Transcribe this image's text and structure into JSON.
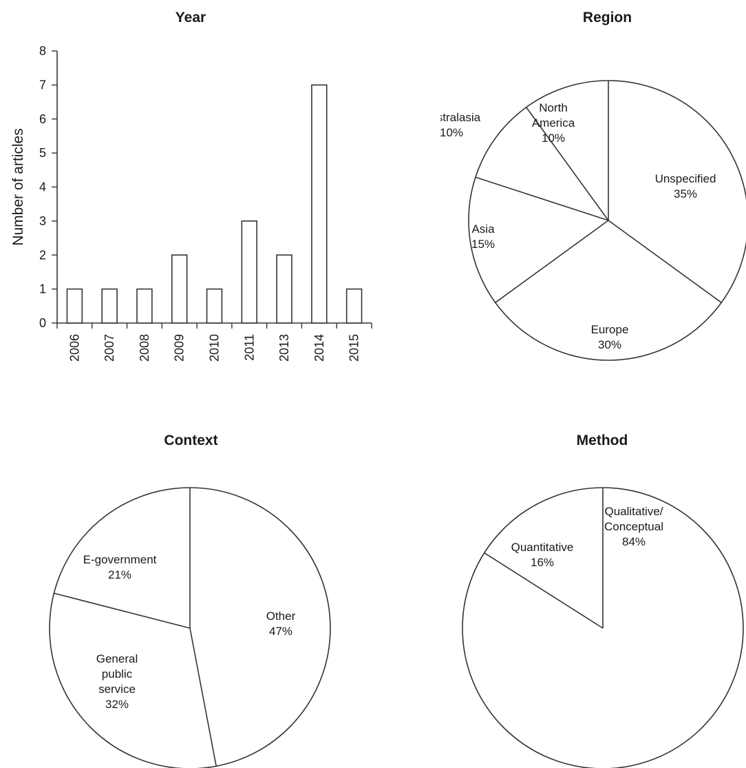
{
  "chart_data": [
    {
      "type": "bar",
      "title": "Year",
      "ylabel": "Number of articles",
      "xlabel": "",
      "categories": [
        "2006",
        "2007",
        "2008",
        "2009",
        "2010",
        "2011",
        "2013",
        "2014",
        "2015"
      ],
      "values": [
        1,
        1,
        1,
        2,
        1,
        3,
        2,
        7,
        1
      ],
      "ylim": [
        0,
        8
      ],
      "yticks": [
        "0",
        "1",
        "2",
        "3",
        "4",
        "5",
        "6",
        "7",
        "8"
      ],
      "grid": false
    },
    {
      "type": "pie",
      "title": "Region",
      "slices": [
        {
          "label": [
            "Unspecified",
            "35%"
          ],
          "value": 35
        },
        {
          "label": [
            "Europe",
            "30%"
          ],
          "value": 30
        },
        {
          "label": [
            "Asia",
            "15%"
          ],
          "value": 15
        },
        {
          "label": [
            "Australasia",
            "10%"
          ],
          "value": 10
        },
        {
          "label": [
            "North",
            "America",
            "10%"
          ],
          "value": 10
        }
      ]
    },
    {
      "type": "pie",
      "title": "Context",
      "slices": [
        {
          "label": [
            "Other",
            "47%"
          ],
          "value": 47
        },
        {
          "label": [
            "General",
            "public",
            "service",
            "32%"
          ],
          "value": 32
        },
        {
          "label": [
            "E-government",
            "21%"
          ],
          "value": 21
        }
      ]
    },
    {
      "type": "pie",
      "title": "Method",
      "slices": [
        {
          "label": [
            "Qualitative/",
            "Conceptual",
            "84%"
          ],
          "value": 84
        },
        {
          "label": [
            "Quantitative",
            "16%"
          ],
          "value": 16
        }
      ]
    }
  ]
}
